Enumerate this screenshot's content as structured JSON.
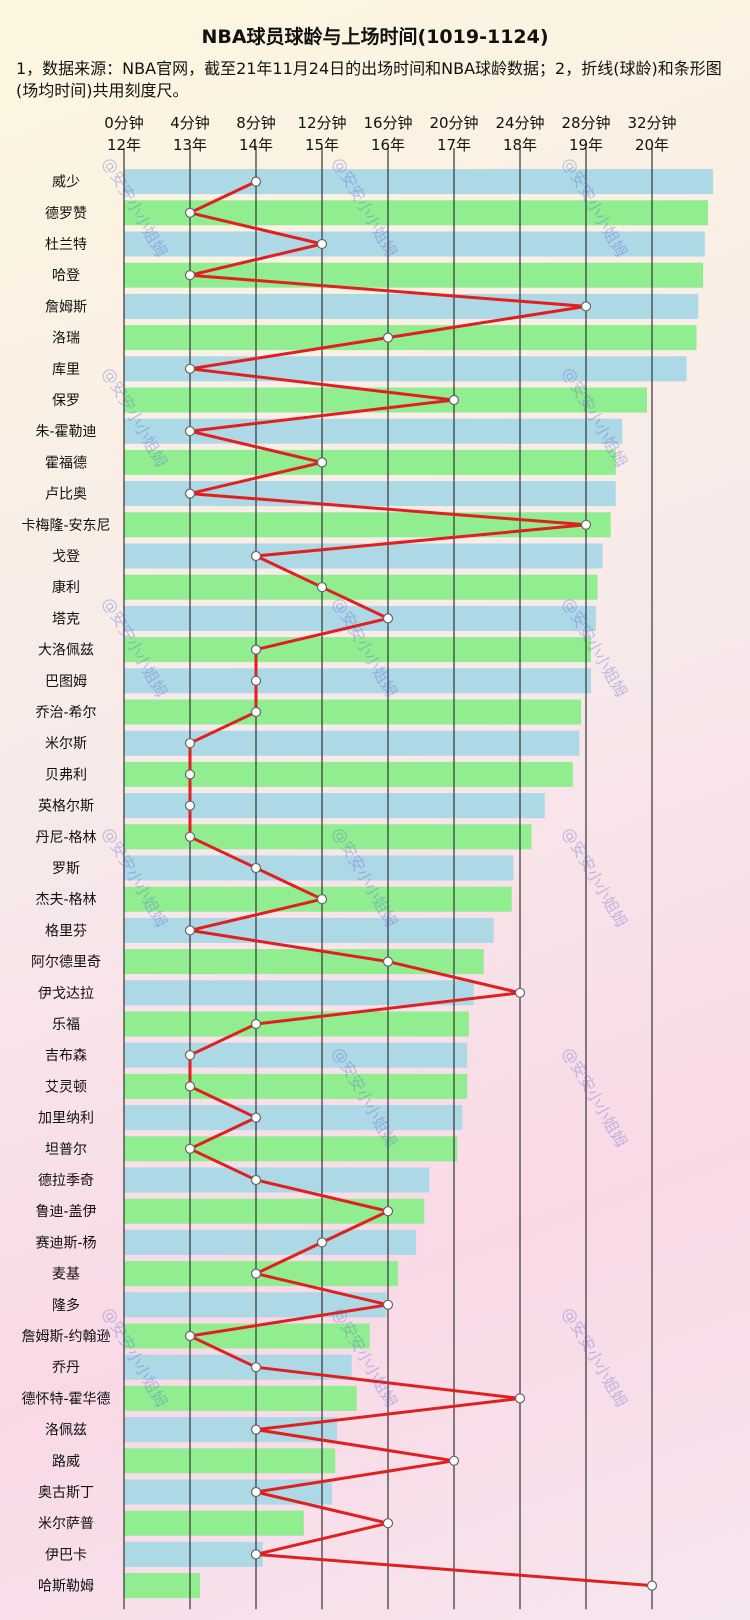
{
  "chart_data": {
    "type": "bar",
    "title": "NBA球员球龄与上场时间(1019-1124)",
    "note": "1，数据来源：NBA官网，截至21年11月24日的出场时间和NBA球龄数据；2，折线(球龄)和条形图(场均时间)共用刻度尺。",
    "x_ticks_minutes": [
      "0分钟",
      "4分钟",
      "8分钟",
      "12分钟",
      "16分钟",
      "20分钟",
      "24分钟",
      "28分钟",
      "32分钟"
    ],
    "x_ticks_years": [
      "12年",
      "13年",
      "14年",
      "15年",
      "16年",
      "17年",
      "18年",
      "19年",
      "20年"
    ],
    "xlim_minutes": [
      0,
      32
    ],
    "xlim_years": [
      12,
      20
    ],
    "grid": true,
    "bar_colors": [
      "#add8e6",
      "#90ee90"
    ],
    "line_color": "#e02020",
    "watermark": "@安安小小姐姆",
    "players": [
      "威少",
      "德罗赞",
      "杜兰特",
      "哈登",
      "詹姆斯",
      "洛瑞",
      "库里",
      "保罗",
      "朱-霍勒迪",
      "霍福德",
      "卢比奥",
      "卡梅隆-安东尼",
      "戈登",
      "康利",
      "塔克",
      "大洛佩兹",
      "巴图姆",
      "乔治-希尔",
      "米尔斯",
      "贝弗利",
      "英格尔斯",
      "丹尼-格林",
      "罗斯",
      "杰夫-格林",
      "格里芬",
      "阿尔德里奇",
      "伊戈达拉",
      "乐福",
      "吉布森",
      "艾灵顿",
      "加里纳利",
      "坦普尔",
      "德拉季奇",
      "鲁迪-盖伊",
      "赛迪斯-杨",
      "麦基",
      "隆多",
      "詹姆斯-约翰逊",
      "乔丹",
      "德怀特-霍华德",
      "洛佩兹",
      "路威",
      "奥古斯丁",
      "米尔萨普",
      "伊巴卡",
      "哈斯勒姆"
    ],
    "series": [
      {
        "name": "场均时间",
        "unit": "分钟",
        "values": [
          35.7,
          35.4,
          35.2,
          35.1,
          34.8,
          34.7,
          34.1,
          31.7,
          30.2,
          29.8,
          29.8,
          29.5,
          29.0,
          28.7,
          28.6,
          28.3,
          28.3,
          27.7,
          27.6,
          27.2,
          25.5,
          24.7,
          23.6,
          23.5,
          22.4,
          21.8,
          21.2,
          20.9,
          20.8,
          20.8,
          20.5,
          20.2,
          18.5,
          18.2,
          17.7,
          16.6,
          15.9,
          14.9,
          13.8,
          14.1,
          12.9,
          12.8,
          12.6,
          10.9,
          8.4,
          4.6
        ]
      },
      {
        "name": "球龄",
        "unit": "年",
        "values": [
          14,
          13,
          15,
          13,
          19,
          16,
          13,
          17,
          13,
          15,
          13,
          19,
          14,
          15,
          16,
          14,
          14,
          14,
          13,
          13,
          13,
          13,
          14,
          15,
          13,
          16,
          18,
          14,
          13,
          13,
          14,
          13,
          14,
          16,
          15,
          14,
          16,
          13,
          14,
          18,
          14,
          17,
          14,
          16,
          14,
          20
        ]
      }
    ]
  }
}
